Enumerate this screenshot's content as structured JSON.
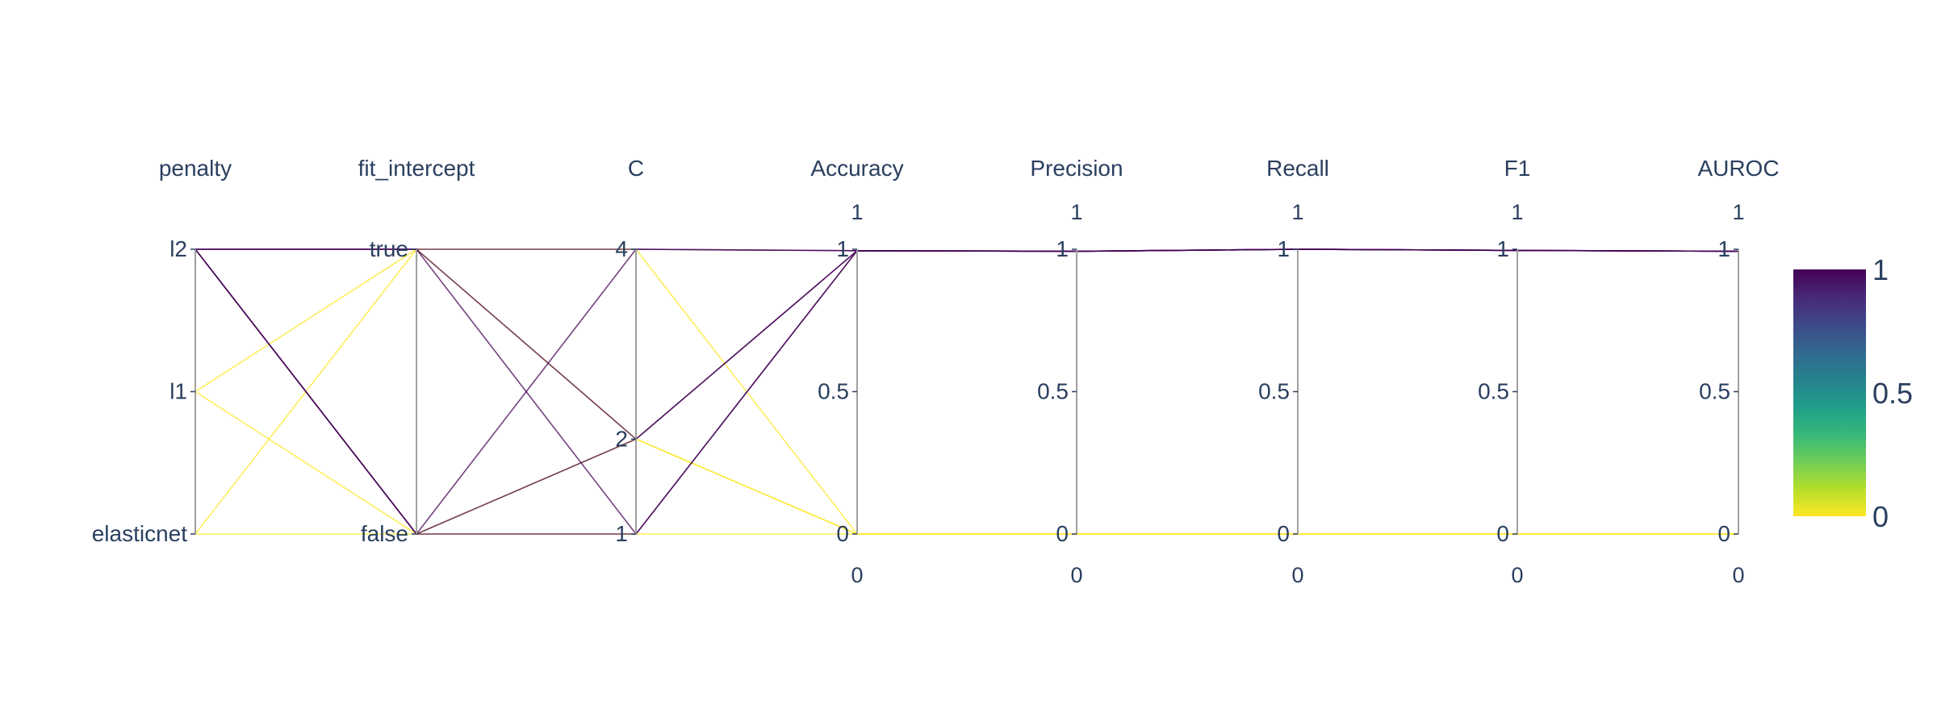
{
  "chart_data": {
    "type": "parallel_coordinates",
    "dimensions": [
      {
        "name": "penalty",
        "kind": "categorical",
        "ticks": [
          "l2",
          "l1",
          "elasticnet"
        ]
      },
      {
        "name": "fit_intercept",
        "kind": "categorical",
        "ticks": [
          "true",
          "false"
        ]
      },
      {
        "name": "C",
        "kind": "numeric",
        "ticks": [
          "4",
          "2",
          "1"
        ],
        "range": [
          1,
          4
        ]
      },
      {
        "name": "Accuracy",
        "kind": "numeric",
        "ticks": [
          "1",
          "0.5",
          "0"
        ],
        "range": [
          0,
          1
        ],
        "range_labels": {
          "max": "1",
          "min": "0"
        }
      },
      {
        "name": "Precision",
        "kind": "numeric",
        "ticks": [
          "1",
          "0.5",
          "0"
        ],
        "range": [
          0,
          1
        ],
        "range_labels": {
          "max": "1",
          "min": "0"
        }
      },
      {
        "name": "Recall",
        "kind": "numeric",
        "ticks": [
          "1",
          "0.5",
          "0"
        ],
        "range": [
          0,
          1
        ],
        "range_labels": {
          "max": "1",
          "min": "0"
        }
      },
      {
        "name": "F1",
        "kind": "numeric",
        "ticks": [
          "1",
          "0.5",
          "0"
        ],
        "range": [
          0,
          1
        ],
        "range_labels": {
          "max": "1",
          "min": "0"
        }
      },
      {
        "name": "AUROC",
        "kind": "numeric",
        "ticks": [
          "1",
          "0.5",
          "0"
        ],
        "range": [
          0,
          1
        ],
        "range_labels": {
          "max": "1",
          "min": "0"
        }
      }
    ],
    "lines": [
      {
        "penalty": "l2",
        "fit_intercept": "true",
        "C": 4,
        "Accuracy": 0.995,
        "Precision": 0.993,
        "Recall": 1.0,
        "F1": 0.996,
        "AUROC": 0.993,
        "color_value": 0.995
      },
      {
        "penalty": "l2",
        "fit_intercept": "false",
        "C": 2,
        "Accuracy": 0.995,
        "Precision": 0.993,
        "Recall": 1.0,
        "F1": 0.996,
        "AUROC": 0.993,
        "color_value": 0.995
      },
      {
        "penalty": "l2",
        "fit_intercept": "true",
        "C": 1,
        "Accuracy": 0.995,
        "Precision": 0.993,
        "Recall": 1.0,
        "F1": 0.996,
        "AUROC": 0.993,
        "color_value": 0.995
      },
      {
        "penalty": "l2",
        "fit_intercept": "false",
        "C": 4,
        "Accuracy": 0.995,
        "Precision": 0.993,
        "Recall": 1.0,
        "F1": 0.996,
        "AUROC": 0.993,
        "color_value": 0.995
      },
      {
        "penalty": "l2",
        "fit_intercept": "true",
        "C": 2,
        "Accuracy": 0.995,
        "Precision": 0.993,
        "Recall": 1.0,
        "F1": 0.996,
        "AUROC": 0.993,
        "color_value": 0.995
      },
      {
        "penalty": "l2",
        "fit_intercept": "false",
        "C": 1,
        "Accuracy": 0.995,
        "Precision": 0.993,
        "Recall": 1.0,
        "F1": 0.996,
        "AUROC": 0.993,
        "color_value": 0.995
      },
      {
        "penalty": "l1",
        "fit_intercept": "true",
        "C": 4,
        "Accuracy": 0,
        "Precision": 0,
        "Recall": 0,
        "F1": 0,
        "AUROC": 0,
        "color_value": 0
      },
      {
        "penalty": "l1",
        "fit_intercept": "false",
        "C": 2,
        "Accuracy": 0,
        "Precision": 0,
        "Recall": 0,
        "F1": 0,
        "AUROC": 0,
        "color_value": 0
      },
      {
        "penalty": "elasticnet",
        "fit_intercept": "true",
        "C": 2,
        "Accuracy": 0,
        "Precision": 0,
        "Recall": 0,
        "F1": 0,
        "AUROC": 0,
        "color_value": 0
      },
      {
        "penalty": "elasticnet",
        "fit_intercept": "false",
        "C": 1,
        "Accuracy": 0,
        "Precision": 0,
        "Recall": 0,
        "F1": 0,
        "AUROC": 0,
        "color_value": 0
      }
    ],
    "colorscale": {
      "name": "Viridis (reversed)",
      "range": [
        0,
        1
      ],
      "ticks": [
        "1",
        "0.5",
        "0"
      ],
      "stops": [
        "#440154",
        "#482878",
        "#3e4989",
        "#31688e",
        "#26828e",
        "#1f9e89",
        "#35b779",
        "#6ece58",
        "#b5de2b",
        "#fde725"
      ]
    },
    "colors": {
      "axis": "#a0a0a0",
      "text": "#2a3f5f"
    }
  }
}
